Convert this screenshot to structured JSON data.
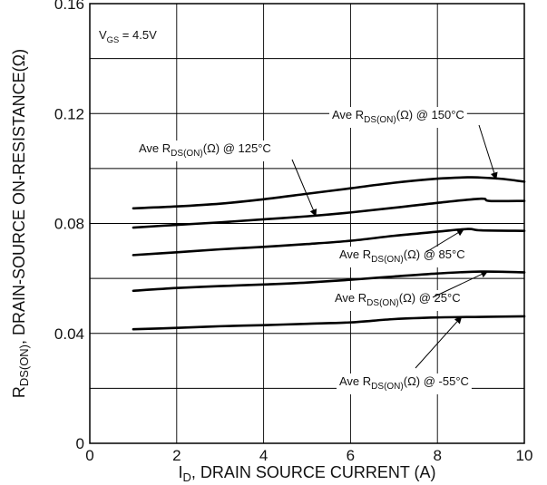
{
  "chart_data": {
    "type": "line",
    "xlabel": {
      "main": "I",
      "sub": "D",
      "rest": ", DRAIN SOURCE CURRENT (A)"
    },
    "ylabel": {
      "main": "R",
      "sub": "DS(ON)",
      "rest": ", DRAIN-SOURCE ON-RESISTANCE(Ω)"
    },
    "xlim": [
      0,
      10
    ],
    "ylim": [
      0,
      0.16
    ],
    "xticks": [
      0,
      2,
      4,
      6,
      8,
      10
    ],
    "xtick_labels": [
      "0",
      "2",
      "4",
      "6",
      "8",
      "10"
    ],
    "yticks": [
      0,
      0.04,
      0.08,
      0.12,
      0.16
    ],
    "ytick_labels": [
      "0",
      "0.04",
      "0.08",
      "0.12",
      "0.16"
    ],
    "grid": true,
    "condition": {
      "main": "V",
      "sub": "GS",
      "rest": " = 4.5V"
    },
    "series": [
      {
        "name": "Ave R_DS(ON)(Ω) @ 150°C",
        "x": [
          1,
          2,
          3,
          4,
          5,
          6,
          7,
          8,
          8.7,
          9,
          9.5,
          10
        ],
        "y": [
          0.0855,
          0.0862,
          0.0872,
          0.0888,
          0.0908,
          0.0928,
          0.0948,
          0.0963,
          0.0968,
          0.0967,
          0.0962,
          0.0952
        ]
      },
      {
        "name": "Ave R_DS(ON)(Ω) @ 125°C",
        "x": [
          1,
          2,
          3,
          4,
          5,
          6,
          7,
          8,
          9,
          9.2,
          10
        ],
        "y": [
          0.0785,
          0.0795,
          0.0804,
          0.0815,
          0.0826,
          0.084,
          0.0857,
          0.0875,
          0.089,
          0.0882,
          0.0882
        ]
      },
      {
        "name": "Ave R_DS(ON)(Ω) @ 85°C",
        "x": [
          1,
          2,
          3,
          4,
          5,
          6,
          7,
          8,
          8.7,
          9,
          10
        ],
        "y": [
          0.0685,
          0.0695,
          0.0706,
          0.0715,
          0.0725,
          0.0737,
          0.0755,
          0.077,
          0.078,
          0.0775,
          0.0773
        ]
      },
      {
        "name": "Ave R_DS(ON)(Ω) @ 25°C",
        "x": [
          1,
          2,
          3,
          4,
          5,
          6,
          7,
          8,
          9,
          10
        ],
        "y": [
          0.0555,
          0.0565,
          0.0572,
          0.0578,
          0.0585,
          0.0595,
          0.0607,
          0.0618,
          0.0625,
          0.0622
        ]
      },
      {
        "name": "Ave R_DS(ON)(Ω) @ -55°C",
        "x": [
          1,
          2,
          3,
          4,
          5,
          6,
          7,
          8,
          9,
          10
        ],
        "y": [
          0.0415,
          0.042,
          0.0426,
          0.043,
          0.0435,
          0.044,
          0.0452,
          0.0458,
          0.046,
          0.0462
        ]
      }
    ],
    "annotations": [
      {
        "series": 0,
        "prefix": "Ave R",
        "sub": "DS(ON)",
        "suffix": "(Ω) @ 150°C",
        "point_x": 9.35,
        "point_y": 0.0962
      },
      {
        "series": 1,
        "prefix": "Ave R",
        "sub": "DS(ON)",
        "suffix": "(Ω) @ 125°C",
        "point_x": 5.2,
        "point_y": 0.0828
      },
      {
        "series": 2,
        "prefix": "Ave R",
        "sub": "DS(ON)",
        "suffix": "(Ω) @ 85°C",
        "point_x": 8.6,
        "point_y": 0.0778
      },
      {
        "series": 3,
        "prefix": "Ave R",
        "sub": "DS(ON)",
        "suffix": "(Ω) @ 25°C",
        "point_x": 9.15,
        "point_y": 0.0625
      },
      {
        "series": 4,
        "prefix": "Ave R",
        "sub": "DS(ON)",
        "suffix": "(Ω) @ -55°C",
        "point_x": 8.55,
        "point_y": 0.046
      }
    ]
  }
}
